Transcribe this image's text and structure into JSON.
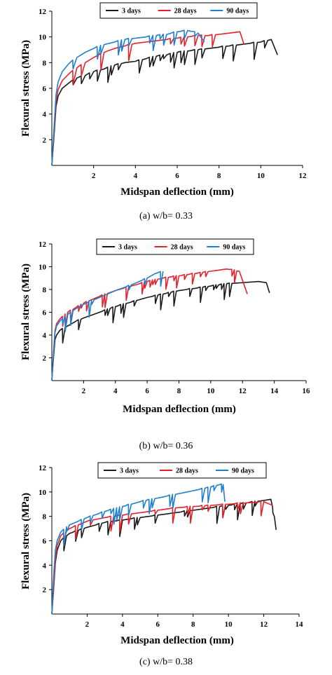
{
  "colors": {
    "3 days": "#1a1a1a",
    "28 days": "#e8202a",
    "90 days": "#1f7fd0"
  },
  "chart_data": [
    {
      "type": "line",
      "caption": "(a) w/b= 0.33",
      "xlabel": "Midspan deflection (mm)",
      "ylabel": "Flexural stress (MPa)",
      "xlim": [
        0,
        12
      ],
      "ylim": [
        0,
        12
      ],
      "xticks": [
        2,
        4,
        6,
        8,
        10,
        12
      ],
      "yticks": [
        2,
        4,
        6,
        8,
        10,
        12
      ],
      "grid": false,
      "legend_position": "top",
      "series": [
        {
          "name": "3 days",
          "color": "#1a1a1a",
          "x": [
            0,
            0.1,
            0.2,
            0.3,
            0.5,
            0.8,
            1.2,
            1.6,
            2.0,
            2.5,
            3.0,
            3.5,
            4.0,
            4.5,
            5.0,
            5.5,
            6.0,
            6.5,
            7.0,
            7.5,
            8.0,
            8.5,
            9.0,
            9.5,
            10.0,
            10.5,
            10.8
          ],
          "y": [
            0,
            2.2,
            4.6,
            5.4,
            6.0,
            6.4,
            6.8,
            7.0,
            7.3,
            7.5,
            7.8,
            8.0,
            8.1,
            8.3,
            8.5,
            8.6,
            8.8,
            8.9,
            9.0,
            9.1,
            9.2,
            9.3,
            9.4,
            9.5,
            9.6,
            9.8,
            8.6
          ]
        },
        {
          "name": "28 days",
          "color": "#e8202a",
          "x": [
            0,
            0.1,
            0.2,
            0.3,
            0.5,
            0.8,
            1.2,
            1.6,
            2.0,
            2.5,
            3.0,
            3.5,
            4.0,
            4.5,
            5.0,
            5.5,
            6.0,
            6.5,
            7.0,
            7.5,
            8.0,
            8.5,
            9.0,
            9.2
          ],
          "y": [
            0,
            2.5,
            5.0,
            5.9,
            6.6,
            7.1,
            7.6,
            8.0,
            8.4,
            8.8,
            9.1,
            9.3,
            9.5,
            9.6,
            9.7,
            9.8,
            9.9,
            10.0,
            10.1,
            10.1,
            10.2,
            10.3,
            10.4,
            9.4
          ]
        },
        {
          "name": "90 days",
          "color": "#1f7fd0",
          "x": [
            0,
            0.1,
            0.2,
            0.3,
            0.5,
            0.8,
            1.2,
            1.6,
            2.0,
            2.5,
            3.0,
            3.5,
            4.0,
            4.5,
            5.0,
            5.5,
            6.0,
            6.5,
            7.0,
            7.3
          ],
          "y": [
            0,
            2.8,
            5.5,
            6.5,
            7.3,
            7.9,
            8.4,
            8.8,
            9.1,
            9.4,
            9.6,
            9.8,
            9.9,
            10.0,
            10.1,
            10.2,
            10.4,
            10.5,
            10.3,
            9.6
          ]
        }
      ]
    },
    {
      "type": "line",
      "caption": "(b) w/b= 0.36",
      "xlabel": "Midspan deflection (mm)",
      "ylabel": "Flexural stress (MPa)",
      "xlim": [
        0,
        16
      ],
      "ylim": [
        0,
        12
      ],
      "xticks": [
        2,
        4,
        6,
        8,
        10,
        12,
        14,
        16
      ],
      "yticks": [
        2,
        4,
        6,
        8,
        10,
        12
      ],
      "grid": false,
      "legend_position": "top",
      "series": [
        {
          "name": "3 days",
          "color": "#1a1a1a",
          "x": [
            0,
            0.1,
            0.2,
            0.3,
            0.5,
            1.0,
            1.5,
            2.0,
            3.0,
            4.0,
            5.0,
            6.0,
            7.0,
            8.0,
            9.0,
            10.0,
            11.0,
            12.0,
            13.0,
            13.5,
            13.7
          ],
          "y": [
            0,
            2.0,
            3.6,
            4.0,
            4.4,
            4.8,
            5.2,
            5.5,
            6.0,
            6.5,
            6.9,
            7.3,
            7.6,
            7.9,
            8.1,
            8.3,
            8.5,
            8.6,
            8.7,
            8.6,
            7.7
          ]
        },
        {
          "name": "28 days",
          "color": "#e8202a",
          "x": [
            0,
            0.1,
            0.2,
            0.3,
            0.5,
            1.0,
            1.5,
            2.0,
            3.0,
            4.0,
            5.0,
            6.0,
            7.0,
            8.0,
            9.0,
            10.0,
            11.0,
            11.8,
            12.3
          ],
          "y": [
            0,
            2.4,
            4.4,
            5.0,
            5.4,
            6.0,
            6.4,
            6.8,
            7.4,
            7.9,
            8.3,
            8.7,
            9.0,
            9.2,
            9.4,
            9.6,
            9.8,
            9.6,
            7.6
          ]
        },
        {
          "name": "90 days",
          "color": "#1f7fd0",
          "x": [
            0,
            0.1,
            0.2,
            0.3,
            0.5,
            1.0,
            1.5,
            2.0,
            3.0,
            4.0,
            5.0,
            6.0,
            6.5,
            7.0
          ],
          "y": [
            0,
            2.3,
            4.2,
            4.8,
            5.2,
            5.8,
            6.3,
            6.7,
            7.3,
            7.9,
            8.4,
            9.0,
            9.4,
            9.6
          ]
        }
      ]
    },
    {
      "type": "line",
      "caption": "(c) w/b= 0.38",
      "xlabel": "Midspan deflection (mm)",
      "ylabel": "Flexural stress (MPa)",
      "xlim": [
        0,
        14
      ],
      "ylim": [
        0,
        12
      ],
      "xticks": [
        2,
        4,
        6,
        8,
        10,
        12,
        14
      ],
      "yticks": [
        2,
        4,
        6,
        8,
        10,
        12
      ],
      "grid": false,
      "legend_position": "top",
      "series": [
        {
          "name": "3 days",
          "color": "#1a1a1a",
          "x": [
            0,
            0.1,
            0.2,
            0.3,
            0.5,
            1.0,
            2.0,
            3.0,
            4.0,
            5.0,
            6.0,
            7.0,
            8.0,
            9.0,
            10.0,
            11.0,
            12.0,
            12.4,
            12.6,
            12.7
          ],
          "y": [
            0,
            2.0,
            4.2,
            5.2,
            6.0,
            6.6,
            7.1,
            7.5,
            7.7,
            7.9,
            8.1,
            8.3,
            8.5,
            8.7,
            8.9,
            9.1,
            9.3,
            9.4,
            8.0,
            6.9
          ]
        },
        {
          "name": "28 days",
          "color": "#e8202a",
          "x": [
            0,
            0.1,
            0.2,
            0.3,
            0.5,
            1.0,
            2.0,
            3.0,
            4.0,
            5.0,
            6.0,
            7.0,
            8.0,
            9.0,
            10.0,
            11.0,
            12.0,
            12.5
          ],
          "y": [
            0,
            2.2,
            4.5,
            5.6,
            6.4,
            7.0,
            7.6,
            7.9,
            8.1,
            8.3,
            8.5,
            8.7,
            8.8,
            8.9,
            9.0,
            9.1,
            9.2,
            8.9
          ]
        },
        {
          "name": "90 days",
          "color": "#1f7fd0",
          "x": [
            0,
            0.1,
            0.2,
            0.3,
            0.5,
            1.0,
            2.0,
            3.0,
            4.0,
            5.0,
            6.0,
            7.0,
            8.0,
            9.0,
            9.5,
            9.7,
            9.8
          ],
          "y": [
            0,
            3.0,
            5.2,
            6.0,
            6.7,
            7.3,
            7.9,
            8.4,
            8.8,
            9.2,
            9.5,
            9.8,
            10.1,
            10.4,
            10.6,
            10.6,
            9.2
          ]
        }
      ]
    }
  ]
}
